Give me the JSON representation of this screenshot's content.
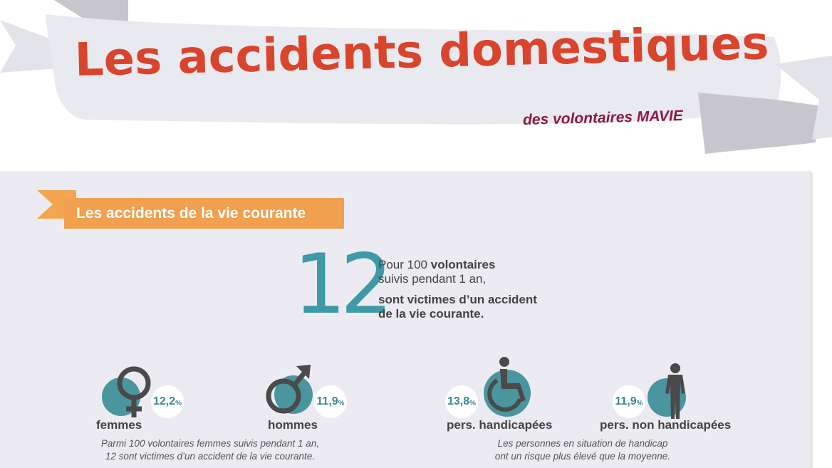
{
  "header": {
    "title": "Les accidents domestiques",
    "subtitle": "des volontaires MAVIE"
  },
  "section": {
    "title": "Les accidents de la vie courante"
  },
  "headline_stat": {
    "value": "12",
    "line1_prefix": "Pour 100 ",
    "line1_bold": "volontaires",
    "line2": "suivis pendant 1 an,",
    "line3": "sont victimes d’un accident",
    "line4": "de la vie courante."
  },
  "categories": [
    {
      "icon": "female-symbol-icon",
      "label": "femmes",
      "value": "12,2",
      "unit": "%"
    },
    {
      "icon": "male-symbol-icon",
      "label": "hommes",
      "value": "11,9",
      "unit": "%"
    },
    {
      "icon": "wheelchair-icon",
      "label": "pers. handicapées",
      "value": "13,8",
      "unit": "%"
    },
    {
      "icon": "person-standing-icon",
      "label": "pers. non handicapées",
      "value": "11,9",
      "unit": "%"
    }
  ],
  "notes": {
    "gender_line1": "Parmi 100 volontaires femmes suivis pendant 1 an,",
    "gender_line2": "12 sont victimes d’un accident de la vie courante.",
    "handicap_line1": "Les personnes en situation de handicap",
    "handicap_line2": "ont un risque plus élevé que la moyenne."
  },
  "colors": {
    "title_red": "#d9452c",
    "subtitle_maroon": "#8b1a45",
    "accent_orange": "#f0a04f",
    "teal": "#3d9aa6",
    "circle_teal": "#4a969f",
    "icon_gray": "#4a4a4a",
    "panel_bg": "#ebebf1",
    "ribbon_bg": "#e9e9f0",
    "ribbon_fold": "#c4c4ca"
  }
}
